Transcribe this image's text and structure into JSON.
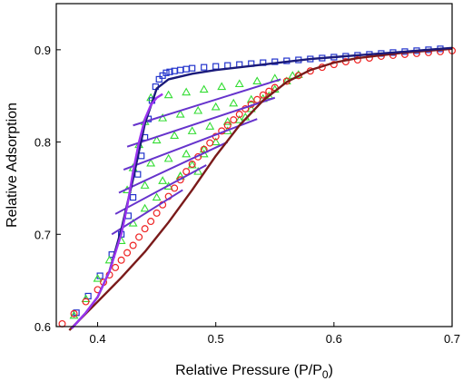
{
  "chart_data": {
    "type": "scatter",
    "title": "",
    "xlabel": "Relative Pressure (P/P",
    "xlabel_sub": "0",
    "xlabel_end": ")",
    "ylabel": "Relative Adsorption",
    "xlim": [
      0.365,
      0.7
    ],
    "ylim": [
      0.6,
      0.95
    ],
    "xticks": [
      "0.4",
      "0.5",
      "0.6",
      "0.7"
    ],
    "xtick_values": [
      0.4,
      0.5,
      0.6,
      0.7
    ],
    "yticks": [
      "0.6",
      "0.7",
      "0.8",
      "0.9"
    ],
    "ytick_values": [
      0.6,
      0.7,
      0.8,
      0.9
    ],
    "grid": false,
    "series": [
      {
        "marker": "square",
        "color": "#2233cc",
        "x": [
          0.382,
          0.392,
          0.402,
          0.412,
          0.42,
          0.426,
          0.43,
          0.434,
          0.437,
          0.44,
          0.443,
          0.446,
          0.449,
          0.452,
          0.455,
          0.458,
          0.461,
          0.465,
          0.47,
          0.475,
          0.48,
          0.49,
          0.5,
          0.51,
          0.52,
          0.53,
          0.54,
          0.55,
          0.56,
          0.57,
          0.58,
          0.59,
          0.6,
          0.61,
          0.62,
          0.63,
          0.64,
          0.65,
          0.66,
          0.67,
          0.68,
          0.69
        ],
        "y": [
          0.615,
          0.633,
          0.655,
          0.678,
          0.7,
          0.72,
          0.74,
          0.765,
          0.785,
          0.805,
          0.825,
          0.845,
          0.86,
          0.868,
          0.872,
          0.875,
          0.876,
          0.877,
          0.878,
          0.879,
          0.88,
          0.881,
          0.882,
          0.883,
          0.884,
          0.885,
          0.886,
          0.887,
          0.888,
          0.889,
          0.89,
          0.891,
          0.892,
          0.893,
          0.894,
          0.895,
          0.896,
          0.897,
          0.898,
          0.899,
          0.9,
          0.901
        ]
      },
      {
        "marker": "triangle",
        "color": "#33dd33",
        "x": [
          0.38,
          0.39,
          0.4,
          0.41,
          0.42,
          0.43,
          0.44,
          0.45,
          0.46,
          0.47,
          0.48,
          0.49,
          0.5,
          0.51,
          0.52,
          0.53,
          0.54,
          0.55,
          0.56,
          0.57,
          0.445,
          0.46,
          0.475,
          0.49,
          0.505,
          0.52,
          0.535,
          0.55,
          0.565,
          0.44,
          0.455,
          0.47,
          0.485,
          0.5,
          0.515,
          0.53,
          0.545,
          0.435,
          0.45,
          0.465,
          0.48,
          0.495,
          0.51,
          0.525,
          0.43,
          0.445,
          0.46,
          0.475,
          0.49,
          0.425,
          0.44,
          0.455,
          0.47,
          0.485
        ],
        "y": [
          0.612,
          0.63,
          0.652,
          0.672,
          0.693,
          0.712,
          0.728,
          0.74,
          0.752,
          0.763,
          0.775,
          0.787,
          0.8,
          0.812,
          0.824,
          0.836,
          0.847,
          0.857,
          0.866,
          0.873,
          0.848,
          0.851,
          0.854,
          0.857,
          0.86,
          0.863,
          0.866,
          0.869,
          0.872,
          0.822,
          0.826,
          0.83,
          0.834,
          0.838,
          0.842,
          0.846,
          0.85,
          0.797,
          0.802,
          0.807,
          0.812,
          0.817,
          0.822,
          0.827,
          0.772,
          0.777,
          0.782,
          0.787,
          0.792,
          0.748,
          0.753,
          0.758,
          0.763,
          0.768
        ]
      },
      {
        "marker": "circle",
        "color": "#ee2222",
        "x": [
          0.37,
          0.38,
          0.39,
          0.4,
          0.405,
          0.41,
          0.415,
          0.42,
          0.425,
          0.43,
          0.435,
          0.44,
          0.445,
          0.45,
          0.455,
          0.46,
          0.465,
          0.47,
          0.475,
          0.48,
          0.485,
          0.49,
          0.495,
          0.5,
          0.505,
          0.51,
          0.515,
          0.52,
          0.525,
          0.53,
          0.535,
          0.54,
          0.545,
          0.55,
          0.56,
          0.57,
          0.58,
          0.59,
          0.6,
          0.61,
          0.62,
          0.63,
          0.64,
          0.65,
          0.66,
          0.67,
          0.68,
          0.69,
          0.7
        ],
        "y": [
          0.603,
          0.614,
          0.627,
          0.64,
          0.648,
          0.656,
          0.664,
          0.672,
          0.68,
          0.688,
          0.697,
          0.706,
          0.714,
          0.723,
          0.732,
          0.741,
          0.75,
          0.759,
          0.768,
          0.776,
          0.784,
          0.792,
          0.799,
          0.806,
          0.812,
          0.818,
          0.824,
          0.83,
          0.836,
          0.841,
          0.846,
          0.851,
          0.855,
          0.859,
          0.866,
          0.872,
          0.877,
          0.881,
          0.884,
          0.887,
          0.889,
          0.891,
          0.893,
          0.894,
          0.895,
          0.896,
          0.897,
          0.898,
          0.899
        ]
      }
    ],
    "curves": [
      {
        "color": "#7a1a1a",
        "x": [
          0.376,
          0.4,
          0.42,
          0.44,
          0.46,
          0.48,
          0.5,
          0.52,
          0.54,
          0.56,
          0.58,
          0.6,
          0.62,
          0.64,
          0.66,
          0.68,
          0.7
        ],
        "y": [
          0.596,
          0.627,
          0.653,
          0.681,
          0.713,
          0.748,
          0.785,
          0.818,
          0.845,
          0.865,
          0.878,
          0.886,
          0.891,
          0.894,
          0.897,
          0.899,
          0.901
        ]
      },
      {
        "color": "#1a1a7a",
        "x": [
          0.378,
          0.39,
          0.4,
          0.41,
          0.42,
          0.43,
          0.44,
          0.45,
          0.46,
          0.48,
          0.5,
          0.52,
          0.54,
          0.56,
          0.58,
          0.6,
          0.62,
          0.64,
          0.66,
          0.68,
          0.7
        ],
        "y": [
          0.598,
          0.615,
          0.632,
          0.66,
          0.705,
          0.76,
          0.82,
          0.858,
          0.868,
          0.874,
          0.878,
          0.881,
          0.884,
          0.887,
          0.89,
          0.892,
          0.894,
          0.896,
          0.898,
          0.9,
          0.902
        ]
      },
      {
        "color": "#9933ee",
        "x": [
          0.378,
          0.39,
          0.4,
          0.41,
          0.42,
          0.425,
          0.43,
          0.435,
          0.44,
          0.445,
          0.45,
          0.455
        ],
        "y": [
          0.598,
          0.615,
          0.632,
          0.66,
          0.7,
          0.73,
          0.768,
          0.8,
          0.825,
          0.84,
          0.848,
          0.852
        ]
      }
    ],
    "scan_lines": [
      {
        "x": [
          0.43,
          0.555
        ],
        "y": [
          0.818,
          0.868
        ]
      },
      {
        "x": [
          0.425,
          0.55
        ],
        "y": [
          0.795,
          0.848
        ]
      },
      {
        "x": [
          0.422,
          0.535
        ],
        "y": [
          0.77,
          0.825
        ]
      },
      {
        "x": [
          0.418,
          0.51
        ],
        "y": [
          0.745,
          0.8
        ]
      },
      {
        "x": [
          0.415,
          0.492
        ],
        "y": [
          0.722,
          0.775
        ]
      },
      {
        "x": [
          0.412,
          0.472
        ],
        "y": [
          0.7,
          0.748
        ]
      }
    ],
    "scan_color": "#6633cc"
  }
}
